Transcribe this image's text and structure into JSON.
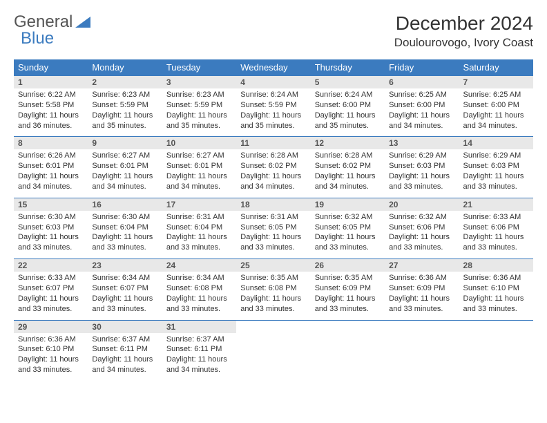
{
  "brand": {
    "part1": "General",
    "part2": "Blue"
  },
  "title": "December 2024",
  "location": "Doulourovogo, Ivory Coast",
  "colors": {
    "header_bg": "#3b7bbf",
    "header_text": "#ffffff",
    "daynum_bg": "#e8e8e8",
    "border": "#3b7bbf"
  },
  "weekdays": [
    "Sunday",
    "Monday",
    "Tuesday",
    "Wednesday",
    "Thursday",
    "Friday",
    "Saturday"
  ],
  "weeks": [
    [
      {
        "num": "1",
        "sunrise": "Sunrise: 6:22 AM",
        "sunset": "Sunset: 5:58 PM",
        "daylight": "Daylight: 11 hours and 36 minutes."
      },
      {
        "num": "2",
        "sunrise": "Sunrise: 6:23 AM",
        "sunset": "Sunset: 5:59 PM",
        "daylight": "Daylight: 11 hours and 35 minutes."
      },
      {
        "num": "3",
        "sunrise": "Sunrise: 6:23 AM",
        "sunset": "Sunset: 5:59 PM",
        "daylight": "Daylight: 11 hours and 35 minutes."
      },
      {
        "num": "4",
        "sunrise": "Sunrise: 6:24 AM",
        "sunset": "Sunset: 5:59 PM",
        "daylight": "Daylight: 11 hours and 35 minutes."
      },
      {
        "num": "5",
        "sunrise": "Sunrise: 6:24 AM",
        "sunset": "Sunset: 6:00 PM",
        "daylight": "Daylight: 11 hours and 35 minutes."
      },
      {
        "num": "6",
        "sunrise": "Sunrise: 6:25 AM",
        "sunset": "Sunset: 6:00 PM",
        "daylight": "Daylight: 11 hours and 34 minutes."
      },
      {
        "num": "7",
        "sunrise": "Sunrise: 6:25 AM",
        "sunset": "Sunset: 6:00 PM",
        "daylight": "Daylight: 11 hours and 34 minutes."
      }
    ],
    [
      {
        "num": "8",
        "sunrise": "Sunrise: 6:26 AM",
        "sunset": "Sunset: 6:01 PM",
        "daylight": "Daylight: 11 hours and 34 minutes."
      },
      {
        "num": "9",
        "sunrise": "Sunrise: 6:27 AM",
        "sunset": "Sunset: 6:01 PM",
        "daylight": "Daylight: 11 hours and 34 minutes."
      },
      {
        "num": "10",
        "sunrise": "Sunrise: 6:27 AM",
        "sunset": "Sunset: 6:01 PM",
        "daylight": "Daylight: 11 hours and 34 minutes."
      },
      {
        "num": "11",
        "sunrise": "Sunrise: 6:28 AM",
        "sunset": "Sunset: 6:02 PM",
        "daylight": "Daylight: 11 hours and 34 minutes."
      },
      {
        "num": "12",
        "sunrise": "Sunrise: 6:28 AM",
        "sunset": "Sunset: 6:02 PM",
        "daylight": "Daylight: 11 hours and 34 minutes."
      },
      {
        "num": "13",
        "sunrise": "Sunrise: 6:29 AM",
        "sunset": "Sunset: 6:03 PM",
        "daylight": "Daylight: 11 hours and 33 minutes."
      },
      {
        "num": "14",
        "sunrise": "Sunrise: 6:29 AM",
        "sunset": "Sunset: 6:03 PM",
        "daylight": "Daylight: 11 hours and 33 minutes."
      }
    ],
    [
      {
        "num": "15",
        "sunrise": "Sunrise: 6:30 AM",
        "sunset": "Sunset: 6:03 PM",
        "daylight": "Daylight: 11 hours and 33 minutes."
      },
      {
        "num": "16",
        "sunrise": "Sunrise: 6:30 AM",
        "sunset": "Sunset: 6:04 PM",
        "daylight": "Daylight: 11 hours and 33 minutes."
      },
      {
        "num": "17",
        "sunrise": "Sunrise: 6:31 AM",
        "sunset": "Sunset: 6:04 PM",
        "daylight": "Daylight: 11 hours and 33 minutes."
      },
      {
        "num": "18",
        "sunrise": "Sunrise: 6:31 AM",
        "sunset": "Sunset: 6:05 PM",
        "daylight": "Daylight: 11 hours and 33 minutes."
      },
      {
        "num": "19",
        "sunrise": "Sunrise: 6:32 AM",
        "sunset": "Sunset: 6:05 PM",
        "daylight": "Daylight: 11 hours and 33 minutes."
      },
      {
        "num": "20",
        "sunrise": "Sunrise: 6:32 AM",
        "sunset": "Sunset: 6:06 PM",
        "daylight": "Daylight: 11 hours and 33 minutes."
      },
      {
        "num": "21",
        "sunrise": "Sunrise: 6:33 AM",
        "sunset": "Sunset: 6:06 PM",
        "daylight": "Daylight: 11 hours and 33 minutes."
      }
    ],
    [
      {
        "num": "22",
        "sunrise": "Sunrise: 6:33 AM",
        "sunset": "Sunset: 6:07 PM",
        "daylight": "Daylight: 11 hours and 33 minutes."
      },
      {
        "num": "23",
        "sunrise": "Sunrise: 6:34 AM",
        "sunset": "Sunset: 6:07 PM",
        "daylight": "Daylight: 11 hours and 33 minutes."
      },
      {
        "num": "24",
        "sunrise": "Sunrise: 6:34 AM",
        "sunset": "Sunset: 6:08 PM",
        "daylight": "Daylight: 11 hours and 33 minutes."
      },
      {
        "num": "25",
        "sunrise": "Sunrise: 6:35 AM",
        "sunset": "Sunset: 6:08 PM",
        "daylight": "Daylight: 11 hours and 33 minutes."
      },
      {
        "num": "26",
        "sunrise": "Sunrise: 6:35 AM",
        "sunset": "Sunset: 6:09 PM",
        "daylight": "Daylight: 11 hours and 33 minutes."
      },
      {
        "num": "27",
        "sunrise": "Sunrise: 6:36 AM",
        "sunset": "Sunset: 6:09 PM",
        "daylight": "Daylight: 11 hours and 33 minutes."
      },
      {
        "num": "28",
        "sunrise": "Sunrise: 6:36 AM",
        "sunset": "Sunset: 6:10 PM",
        "daylight": "Daylight: 11 hours and 33 minutes."
      }
    ],
    [
      {
        "num": "29",
        "sunrise": "Sunrise: 6:36 AM",
        "sunset": "Sunset: 6:10 PM",
        "daylight": "Daylight: 11 hours and 33 minutes."
      },
      {
        "num": "30",
        "sunrise": "Sunrise: 6:37 AM",
        "sunset": "Sunset: 6:11 PM",
        "daylight": "Daylight: 11 hours and 34 minutes."
      },
      {
        "num": "31",
        "sunrise": "Sunrise: 6:37 AM",
        "sunset": "Sunset: 6:11 PM",
        "daylight": "Daylight: 11 hours and 34 minutes."
      },
      null,
      null,
      null,
      null
    ]
  ]
}
